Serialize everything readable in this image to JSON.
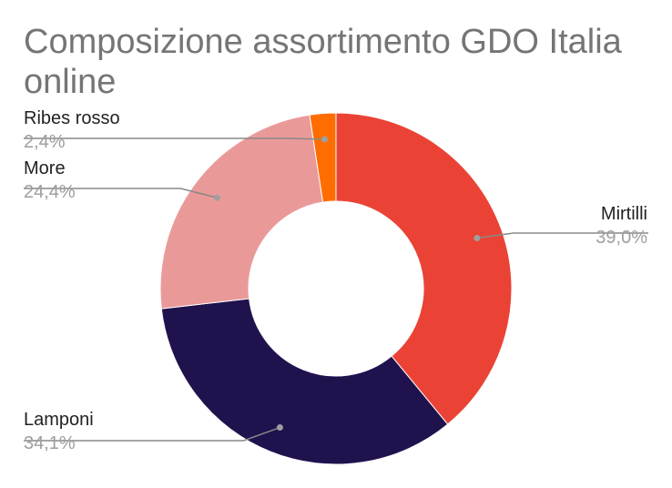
{
  "chart_data": {
    "type": "pie",
    "donut": true,
    "title": "Composizione assortimento GDO Italia online",
    "slices": [
      {
        "label": "Mirtilli",
        "value": 39.0,
        "value_label": "39,0%",
        "color": "#ea4335"
      },
      {
        "label": "Lamponi",
        "value": 34.1,
        "value_label": "34,1%",
        "color": "#20124d"
      },
      {
        "label": "More",
        "value": 24.4,
        "value_label": "24,4%",
        "color": "#ea9999"
      },
      {
        "label": "Ribes rosso",
        "value": 2.4,
        "value_label": "2,4%",
        "color": "#ff6d01"
      }
    ]
  }
}
